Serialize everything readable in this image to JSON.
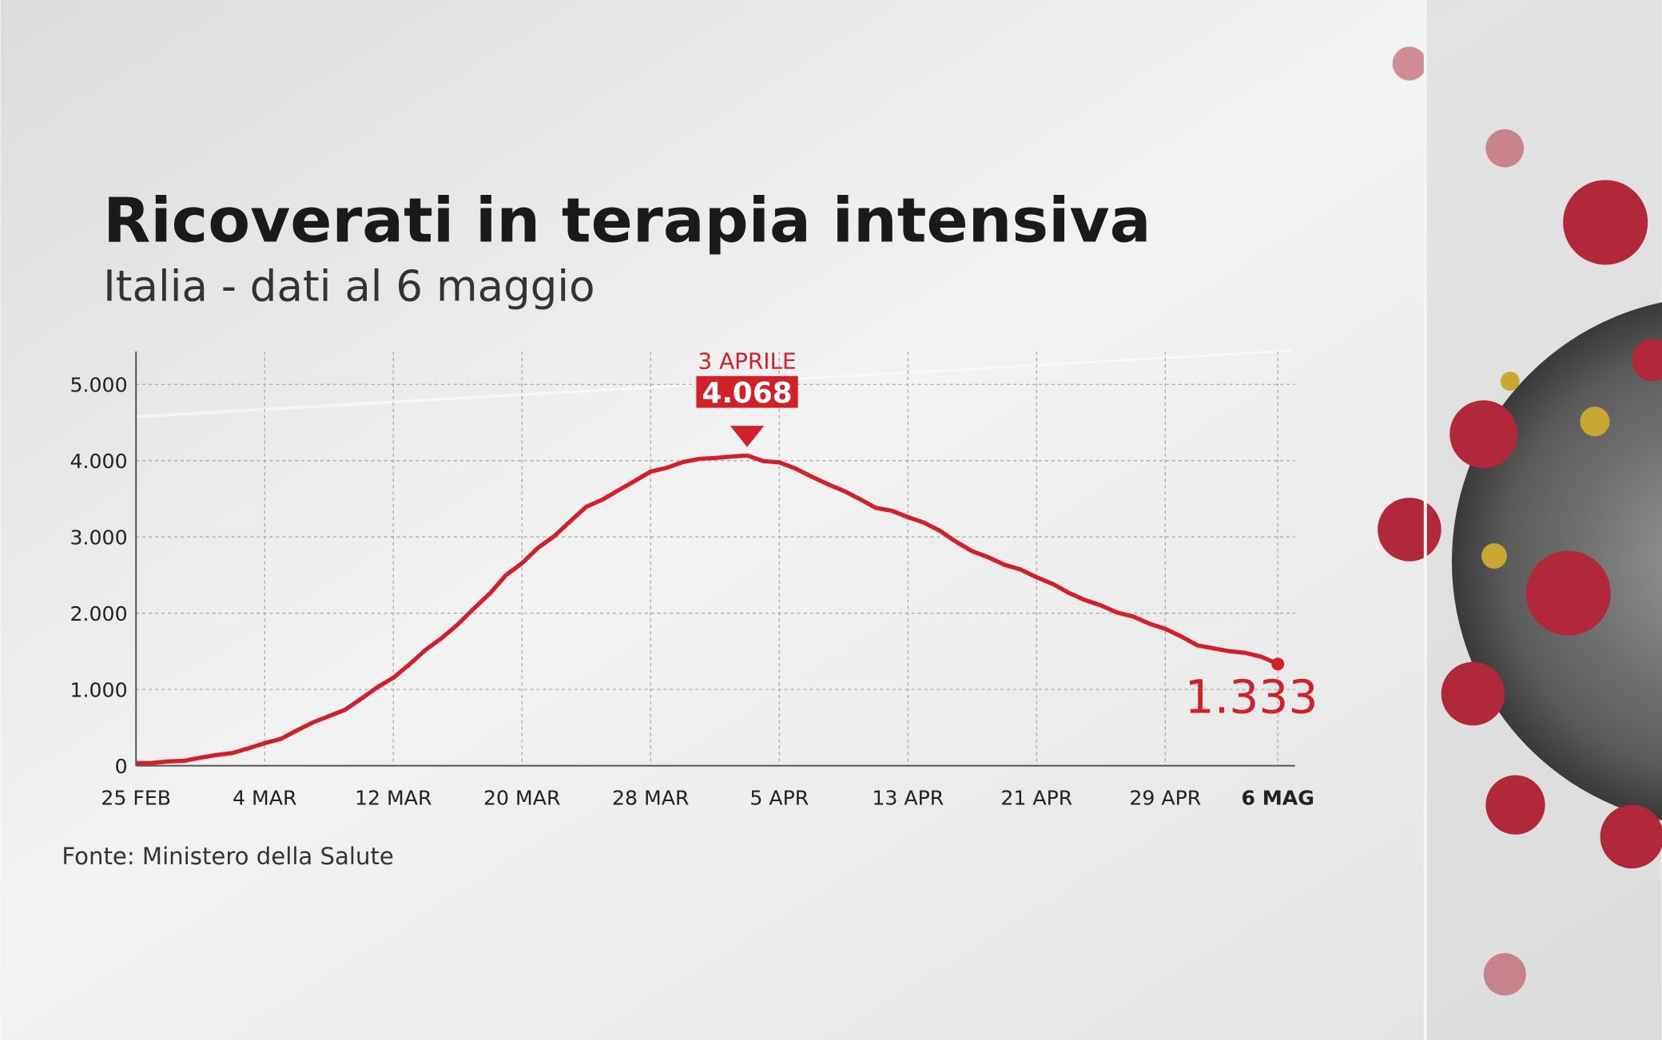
{
  "chart_data": {
    "type": "line",
    "title": "Ricoverati in terapia intensiva",
    "subtitle": "Italia - dati al 6 maggio",
    "source": "Fonte: Ministero della Salute",
    "annotations": [
      "3 APRILE"
    ],
    "categories": [
      "25 FEB",
      null,
      null,
      null,
      null,
      null,
      null,
      null,
      "4 MAR",
      null,
      null,
      null,
      null,
      null,
      null,
      null,
      "12 MAR",
      null,
      null,
      null,
      null,
      null,
      null,
      null,
      "20 MAR",
      null,
      null,
      null,
      null,
      null,
      null,
      null,
      "28 MAR",
      null,
      null,
      null,
      null,
      null,
      null,
      null,
      "5 APR",
      null,
      null,
      null,
      null,
      null,
      null,
      null,
      "13 APR",
      null,
      null,
      null,
      null,
      null,
      null,
      null,
      "21 APR",
      null,
      null,
      null,
      null,
      null,
      null,
      null,
      "29 APR",
      null,
      null,
      null,
      null,
      null,
      null,
      "6 MAG"
    ],
    "values": [
      35,
      36,
      56,
      64,
      105,
      140,
      166,
      229,
      295,
      351,
      462,
      567,
      650,
      733,
      877,
      1028,
      1153,
      1328,
      1518,
      1672,
      1851,
      2060,
      2257,
      2498,
      2655,
      2857,
      3009,
      3204,
      3396,
      3489,
      3612,
      3732,
      3856,
      3906,
      3981,
      4023,
      4035,
      4053,
      4068,
      3994,
      3977,
      3898,
      3792,
      3693,
      3605,
      3497,
      3381,
      3343,
      3260,
      3186,
      3079,
      2936,
      2812,
      2733,
      2635,
      2573,
      2471,
      2384,
      2267,
      2173,
      2102,
      2009,
      1956,
      1863,
      1795,
      1694,
      1578,
      1539,
      1501,
      1479,
      1427,
      1333
    ],
    "value_labels": [
      null,
      null,
      null,
      null,
      null,
      null,
      null,
      null,
      null,
      null,
      null,
      null,
      null,
      null,
      null,
      null,
      null,
      null,
      null,
      null,
      null,
      null,
      null,
      null,
      null,
      null,
      null,
      null,
      null,
      null,
      null,
      null,
      null,
      null,
      null,
      null,
      null,
      null,
      "4.068",
      null,
      null,
      null,
      null,
      null,
      null,
      null,
      null,
      null,
      null,
      null,
      null,
      null,
      null,
      null,
      null,
      null,
      null,
      null,
      null,
      null,
      null,
      null,
      null,
      null,
      null,
      null,
      null,
      null,
      null,
      null,
      null,
      "1.333"
    ],
    "color": "#d0202a",
    "ylim": [
      0,
      5430
    ],
    "yticks": [
      0,
      {
        "value": 1000,
        "label": "1.000"
      },
      {
        "value": 2000,
        "label": "2.000"
      },
      {
        "value": 3000,
        "label": "3.000"
      },
      {
        "value": 4000,
        "label": "4.000"
      },
      {
        "value": 5000,
        "label": "5.000"
      }
    ],
    "grid": true
  }
}
